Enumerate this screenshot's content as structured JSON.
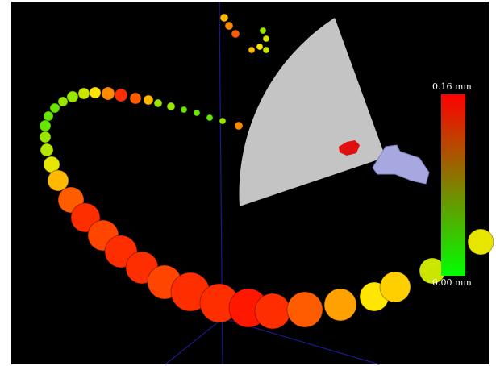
{
  "colorbar": {
    "max_label": "0.16 mm",
    "min_label": "0.00 mm"
  }
}
